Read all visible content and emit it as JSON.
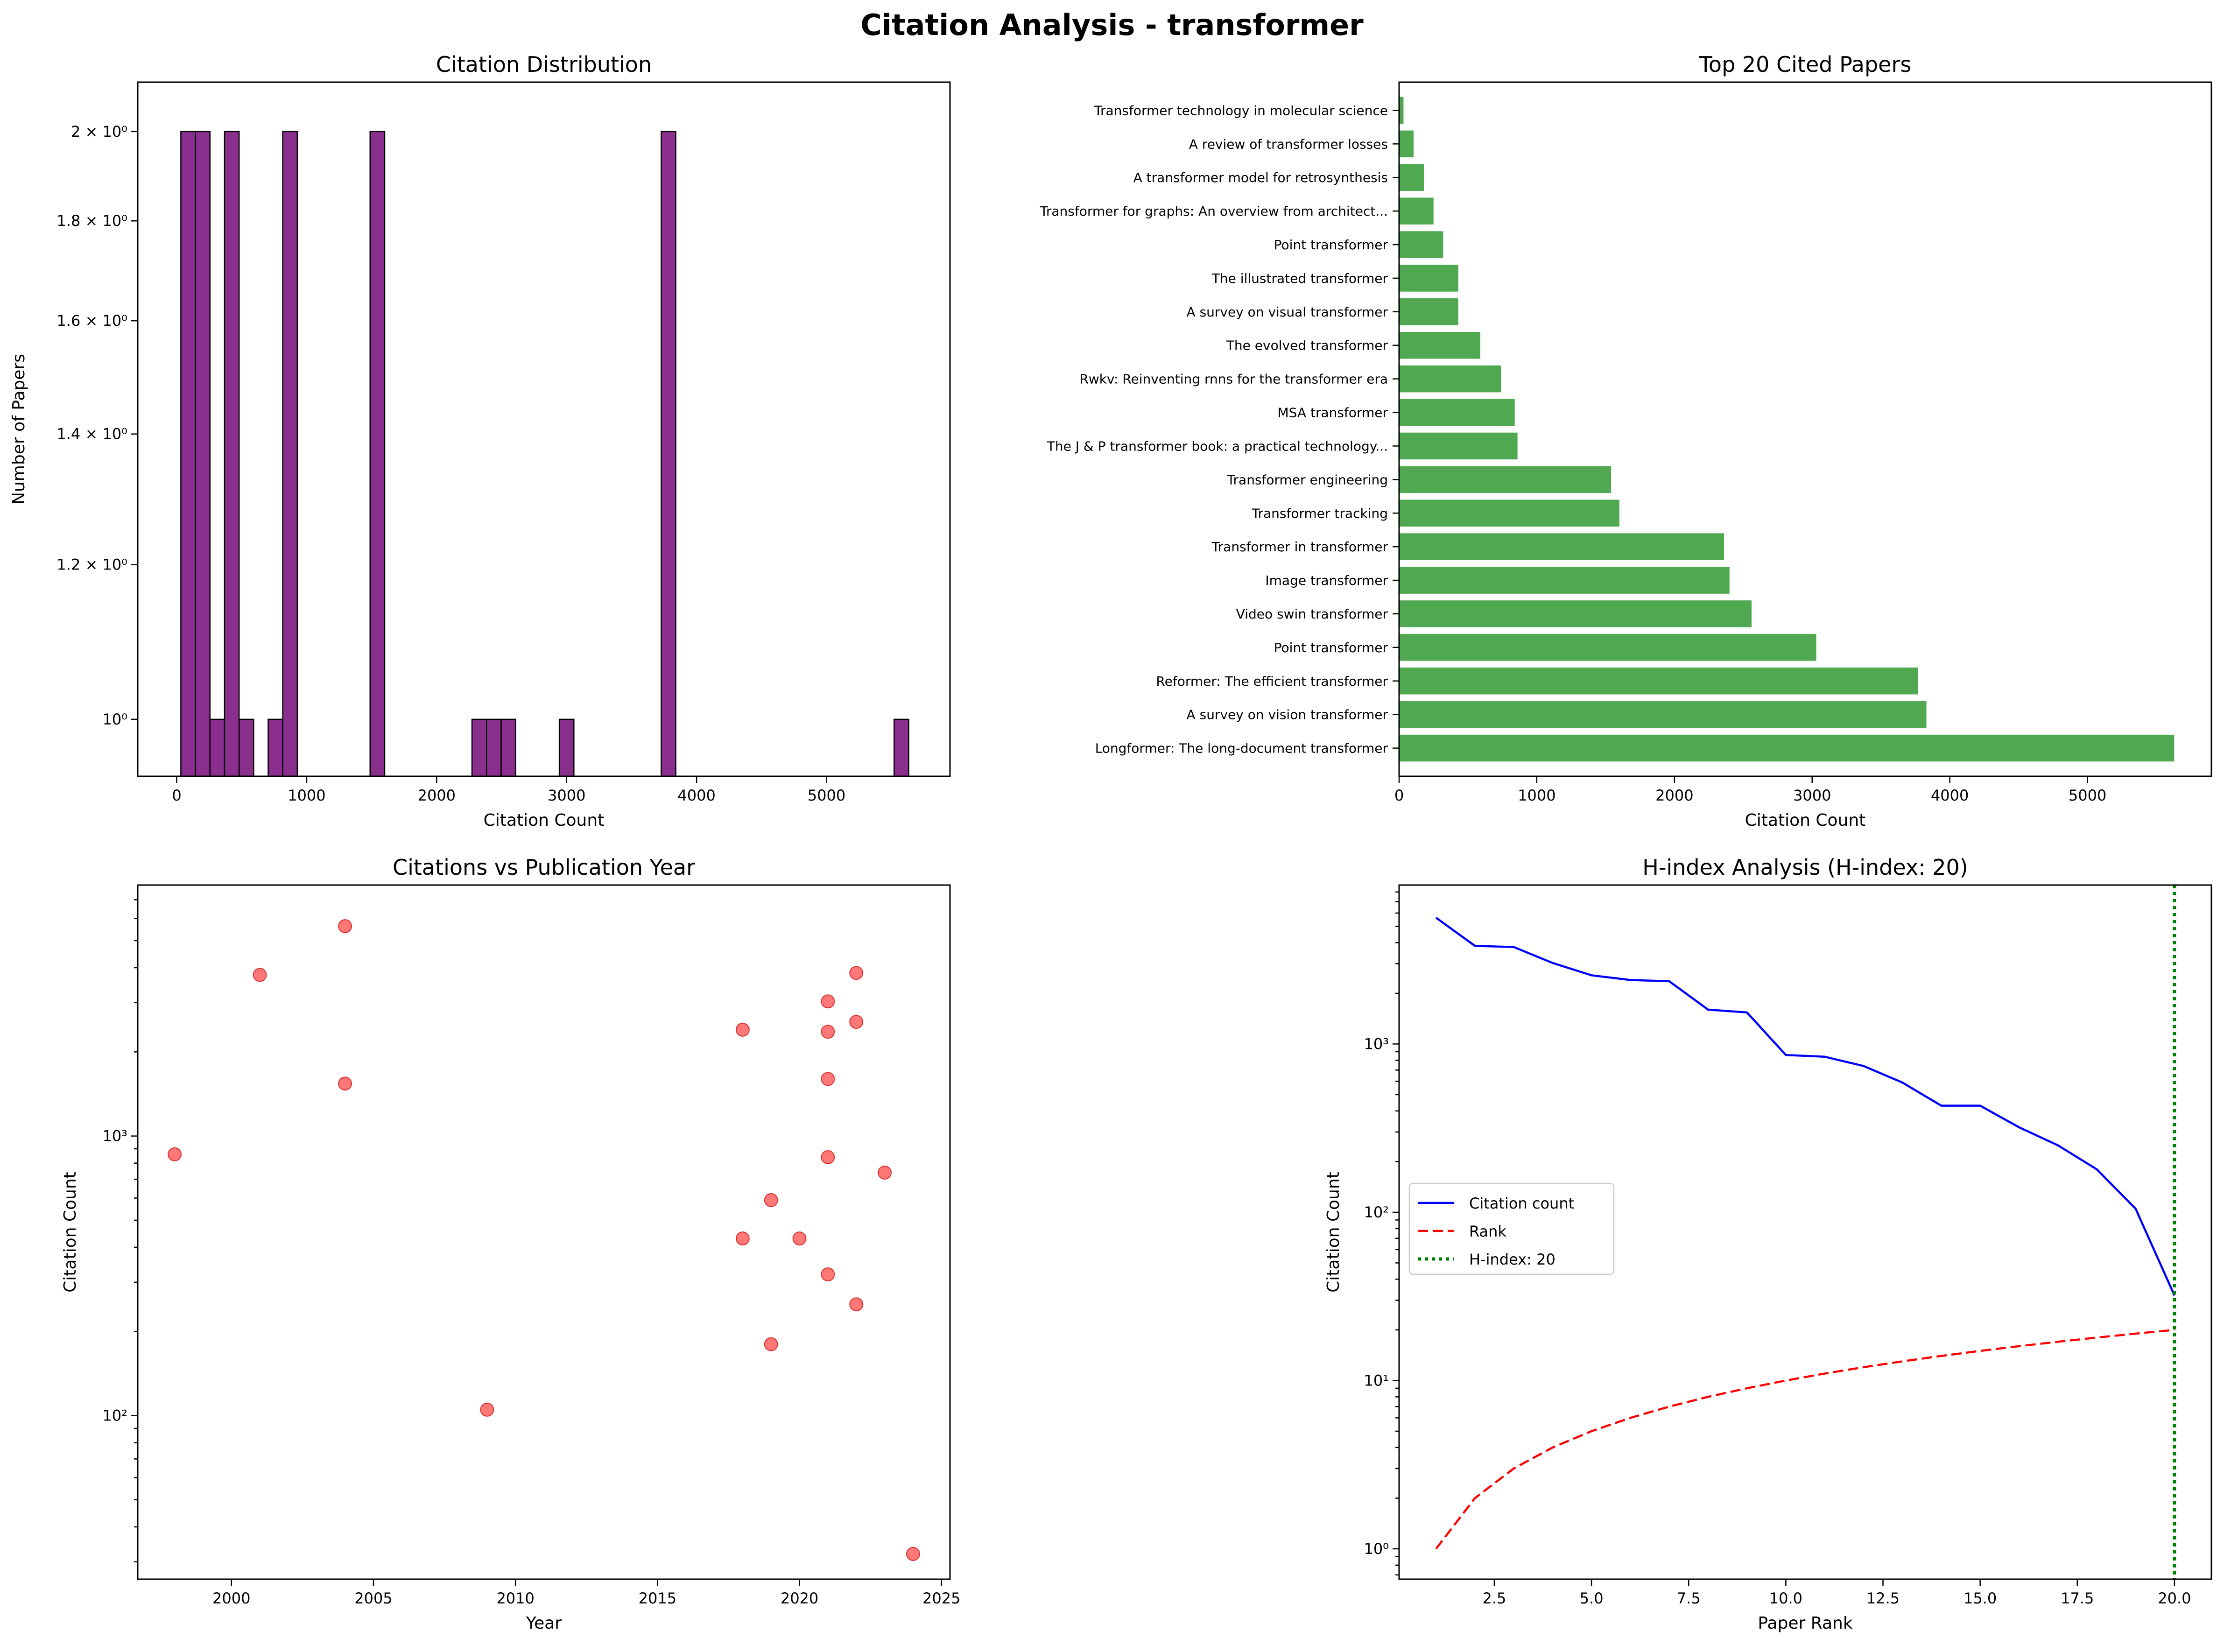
{
  "figure": {
    "title": "Citation Analysis - transformer"
  },
  "chart_data": [
    {
      "id": "hist",
      "type": "bar",
      "title": "Citation Distribution",
      "xlabel": "Citation Count",
      "ylabel": "Number of Papers",
      "yscale": "log",
      "xlim": [
        -300,
        5950
      ],
      "ylim": [
        0.935,
        2.12
      ],
      "xticks": [
        0,
        1000,
        2000,
        3000,
        4000,
        5000
      ],
      "yticks": [
        {
          "value": 1,
          "label": "10⁰"
        },
        {
          "value": 1.2,
          "label": "1.2 × 10⁰"
        },
        {
          "value": 1.4,
          "label": "1.4 × 10⁰"
        },
        {
          "value": 1.6,
          "label": "1.6 × 10⁰"
        },
        {
          "value": 1.8,
          "label": "1.8 × 10⁰"
        },
        {
          "value": 2,
          "label": "2 × 10⁰"
        }
      ],
      "bin_width": 112,
      "bins": [
        {
          "x": 32,
          "count": 2
        },
        {
          "x": 144,
          "count": 2
        },
        {
          "x": 256,
          "count": 1
        },
        {
          "x": 368,
          "count": 2
        },
        {
          "x": 480,
          "count": 1
        },
        {
          "x": 704,
          "count": 1
        },
        {
          "x": 816,
          "count": 2
        },
        {
          "x": 1488,
          "count": 2
        },
        {
          "x": 2272,
          "count": 1
        },
        {
          "x": 2384,
          "count": 1
        },
        {
          "x": 2496,
          "count": 1
        },
        {
          "x": 2944,
          "count": 1
        },
        {
          "x": 3728,
          "count": 2
        },
        {
          "x": 5520,
          "count": 1
        }
      ],
      "colors": {
        "bar": "#8b2f8f",
        "edge": "#000000"
      }
    },
    {
      "id": "top",
      "type": "bar",
      "orientation": "horizontal",
      "title": "Top 20 Cited Papers",
      "xlabel": "Citation Count",
      "xlim": [
        0,
        5900
      ],
      "xticks": [
        0,
        1000,
        2000,
        3000,
        4000,
        5000
      ],
      "categories": [
        "Longformer: The long-document transformer",
        "A survey on vision transformer",
        "Reformer: The efficient transformer",
        "Point transformer",
        "Video swin transformer",
        "Image transformer",
        "Transformer in transformer",
        "Transformer tracking",
        "Transformer engineering",
        "The J & P transformer book: a practical technology...",
        "MSA transformer",
        "Rwkv: Reinventing rnns for the transformer era",
        "The evolved transformer",
        "A survey on visual transformer",
        "The illustrated transformer",
        "Point transformer",
        "Transformer for graphs: An overview from architect...",
        "A transformer model for retrosynthesis",
        "A review of transformer losses",
        "Transformer technology in molecular science"
      ],
      "values": [
        5630,
        3830,
        3770,
        3030,
        2560,
        2400,
        2360,
        1600,
        1540,
        860,
        840,
        740,
        590,
        430,
        430,
        320,
        250,
        180,
        105,
        32
      ],
      "colors": {
        "bar": "#4ca64c"
      }
    },
    {
      "id": "scatter",
      "type": "scatter",
      "title": "Citations vs Publication Year",
      "xlabel": "Year",
      "ylabel": "Citation Count",
      "yscale": "log",
      "xlim": [
        1996.7,
        2025.3
      ],
      "ylim": [
        26,
        7900
      ],
      "xticks": [
        2000,
        2005,
        2010,
        2015,
        2020,
        2025
      ],
      "yticks": [
        {
          "value": 100,
          "label": "10²"
        },
        {
          "value": 1000,
          "label": "10³"
        }
      ],
      "points": [
        {
          "x": 1998,
          "y": 860
        },
        {
          "x": 2001,
          "y": 3770
        },
        {
          "x": 2004,
          "y": 5630
        },
        {
          "x": 2004,
          "y": 1540
        },
        {
          "x": 2009,
          "y": 105
        },
        {
          "x": 2018,
          "y": 2400
        },
        {
          "x": 2018,
          "y": 430
        },
        {
          "x": 2019,
          "y": 590
        },
        {
          "x": 2019,
          "y": 180
        },
        {
          "x": 2020,
          "y": 430
        },
        {
          "x": 2021,
          "y": 3030
        },
        {
          "x": 2021,
          "y": 2360
        },
        {
          "x": 2021,
          "y": 1600
        },
        {
          "x": 2021,
          "y": 840
        },
        {
          "x": 2021,
          "y": 320
        },
        {
          "x": 2022,
          "y": 3830
        },
        {
          "x": 2022,
          "y": 2560
        },
        {
          "x": 2022,
          "y": 250
        },
        {
          "x": 2023,
          "y": 740
        },
        {
          "x": 2024,
          "y": 32
        }
      ],
      "colors": {
        "point": "#ff4444",
        "edge": "#cc0000"
      }
    },
    {
      "id": "hindex",
      "type": "line",
      "title": "H-index Analysis (H-index: 20)",
      "xlabel": "Paper Rank",
      "ylabel": "Citation Count",
      "yscale": "log",
      "xlim": [
        0.05,
        20.95
      ],
      "ylim": [
        0.66,
        8800
      ],
      "xticks": [
        {
          "value": 2.5,
          "label": "2.5"
        },
        {
          "value": 5,
          "label": "5.0"
        },
        {
          "value": 7.5,
          "label": "7.5"
        },
        {
          "value": 10,
          "label": "10.0"
        },
        {
          "value": 12.5,
          "label": "12.5"
        },
        {
          "value": 15,
          "label": "15.0"
        },
        {
          "value": 17.5,
          "label": "17.5"
        },
        {
          "value": 20,
          "label": "20.0"
        }
      ],
      "yticks": [
        {
          "value": 1,
          "label": "10⁰"
        },
        {
          "value": 10,
          "label": "10¹"
        },
        {
          "value": 100,
          "label": "10²"
        },
        {
          "value": 1000,
          "label": "10³"
        }
      ],
      "x": [
        1,
        2,
        3,
        4,
        5,
        6,
        7,
        8,
        9,
        10,
        11,
        12,
        13,
        14,
        15,
        16,
        17,
        18,
        19,
        20
      ],
      "series": [
        {
          "name": "Citation count",
          "style": "solid",
          "color": "#0000ff",
          "values": [
            5630,
            3830,
            3770,
            3030,
            2560,
            2400,
            2360,
            1600,
            1540,
            860,
            840,
            740,
            590,
            430,
            430,
            320,
            250,
            180,
            105,
            32
          ]
        },
        {
          "name": "Rank",
          "style": "dashed",
          "color": "#ff0000",
          "values": [
            1,
            2,
            3,
            4,
            5,
            6,
            7,
            8,
            9,
            10,
            11,
            12,
            13,
            14,
            15,
            16,
            17,
            18,
            19,
            20
          ]
        }
      ],
      "vline": {
        "name": "H-index: 20",
        "x": 20,
        "style": "dotted",
        "color": "#008000"
      },
      "legend": "center-left"
    }
  ]
}
